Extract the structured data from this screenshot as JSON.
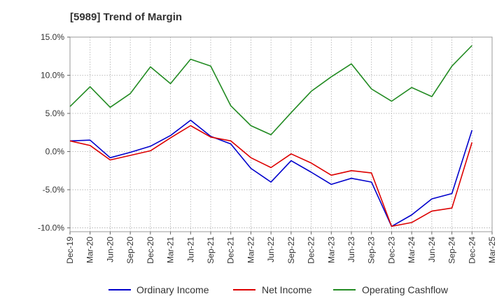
{
  "chart_data": {
    "type": "line",
    "title": "[5989]  Trend of Margin",
    "xlabel": "",
    "ylabel": "",
    "ylim": [
      -10.5,
      15.0
    ],
    "yticks": [
      15.0,
      10.0,
      5.0,
      0.0,
      -5.0,
      -10.0
    ],
    "ytick_labels": [
      "15.0%",
      "10.0%",
      "5.0%",
      "0.0%",
      "-5.0%",
      "-10.0%"
    ],
    "x_tick_labels": [
      "Dec-19",
      "Mar-20",
      "Jun-20",
      "Sep-20",
      "Dec-20",
      "Mar-21",
      "Jun-21",
      "Sep-21",
      "Dec-21",
      "Mar-22",
      "Jun-22",
      "Sep-22",
      "Dec-22",
      "Mar-23",
      "Jun-23",
      "Sep-23",
      "Dec-23",
      "Mar-24",
      "Jun-24",
      "Sep-24",
      "Dec-24",
      "Mar-25"
    ],
    "categories": [
      "Dec-19",
      "Mar-20",
      "Jun-20",
      "Sep-20",
      "Dec-20",
      "Mar-21",
      "Jun-21",
      "Sep-21",
      "Dec-21",
      "Mar-22",
      "Jun-22",
      "Sep-22",
      "Dec-22",
      "Mar-23",
      "Jun-23",
      "Sep-23",
      "Dec-23",
      "Mar-24",
      "Jun-24",
      "Sep-24",
      "Dec-24"
    ],
    "grid": true,
    "legend_position": "bottom",
    "series": [
      {
        "name": "Ordinary Income",
        "color": "#0000cc",
        "values": [
          1.4,
          1.5,
          -0.8,
          -0.1,
          0.7,
          2.1,
          4.1,
          2.0,
          1.0,
          -2.2,
          -4.0,
          -1.2,
          -2.7,
          -4.3,
          -3.5,
          -4.0,
          -9.8,
          -8.3,
          -6.2,
          -5.5,
          2.8
        ]
      },
      {
        "name": "Net Income",
        "color": "#dd0000",
        "values": [
          1.4,
          0.8,
          -1.1,
          -0.5,
          0.1,
          1.8,
          3.4,
          1.9,
          1.4,
          -0.8,
          -2.1,
          -0.3,
          -1.5,
          -3.1,
          -2.5,
          -2.8,
          -9.8,
          -9.3,
          -7.8,
          -7.4,
          1.2
        ]
      },
      {
        "name": "Operating Cashflow",
        "color": "#228b22",
        "values": [
          5.9,
          8.5,
          5.8,
          7.6,
          11.1,
          8.9,
          12.1,
          11.2,
          6.0,
          3.4,
          2.2,
          5.1,
          7.9,
          9.8,
          11.5,
          8.2,
          6.6,
          8.4,
          7.2,
          11.2,
          13.9
        ]
      }
    ]
  }
}
